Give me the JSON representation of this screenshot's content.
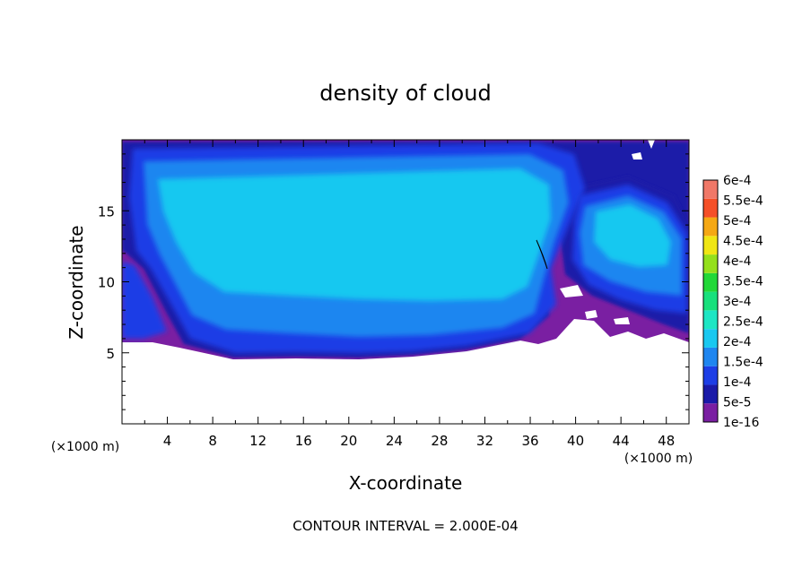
{
  "chart_data": {
    "type": "heatmap",
    "title": "density of cloud",
    "xlabel": "X-coordinate",
    "ylabel": "Z-coordinate",
    "x_unit_label": "(×1000 m)",
    "z_unit_label": "(×1000 m)",
    "xlim": [
      0,
      50
    ],
    "ylim": [
      0,
      20
    ],
    "x_ticks": [
      4,
      8,
      12,
      16,
      20,
      24,
      28,
      32,
      36,
      40,
      44,
      48
    ],
    "y_ticks": [
      5,
      10,
      15
    ],
    "footer": "CONTOUR INTERVAL = 2.000E-04",
    "colorbar": {
      "labels": [
        "1e-16",
        "5e-5",
        "1e-4",
        "1.5e-4",
        "2e-4",
        "2.5e-4",
        "3e-4",
        "3.5e-4",
        "4e-4",
        "4.5e-4",
        "5e-4",
        "5.5e-4",
        "6e-4"
      ],
      "colors": [
        "#7a1fa2",
        "#1a1aa8",
        "#1d3ee6",
        "#1f86f0",
        "#19c8f0",
        "#1de6c4",
        "#18e07c",
        "#22d838",
        "#94e01c",
        "#f0e614",
        "#f5a814",
        "#f55028",
        "#f07868"
      ]
    },
    "shaded_levels_present": [
      "1e-16",
      "5e-5",
      "1e-4",
      "1.5e-4",
      "2e-4"
    ],
    "cloud_base_z_approx": 5.5,
    "domain_top_z": 20
  }
}
